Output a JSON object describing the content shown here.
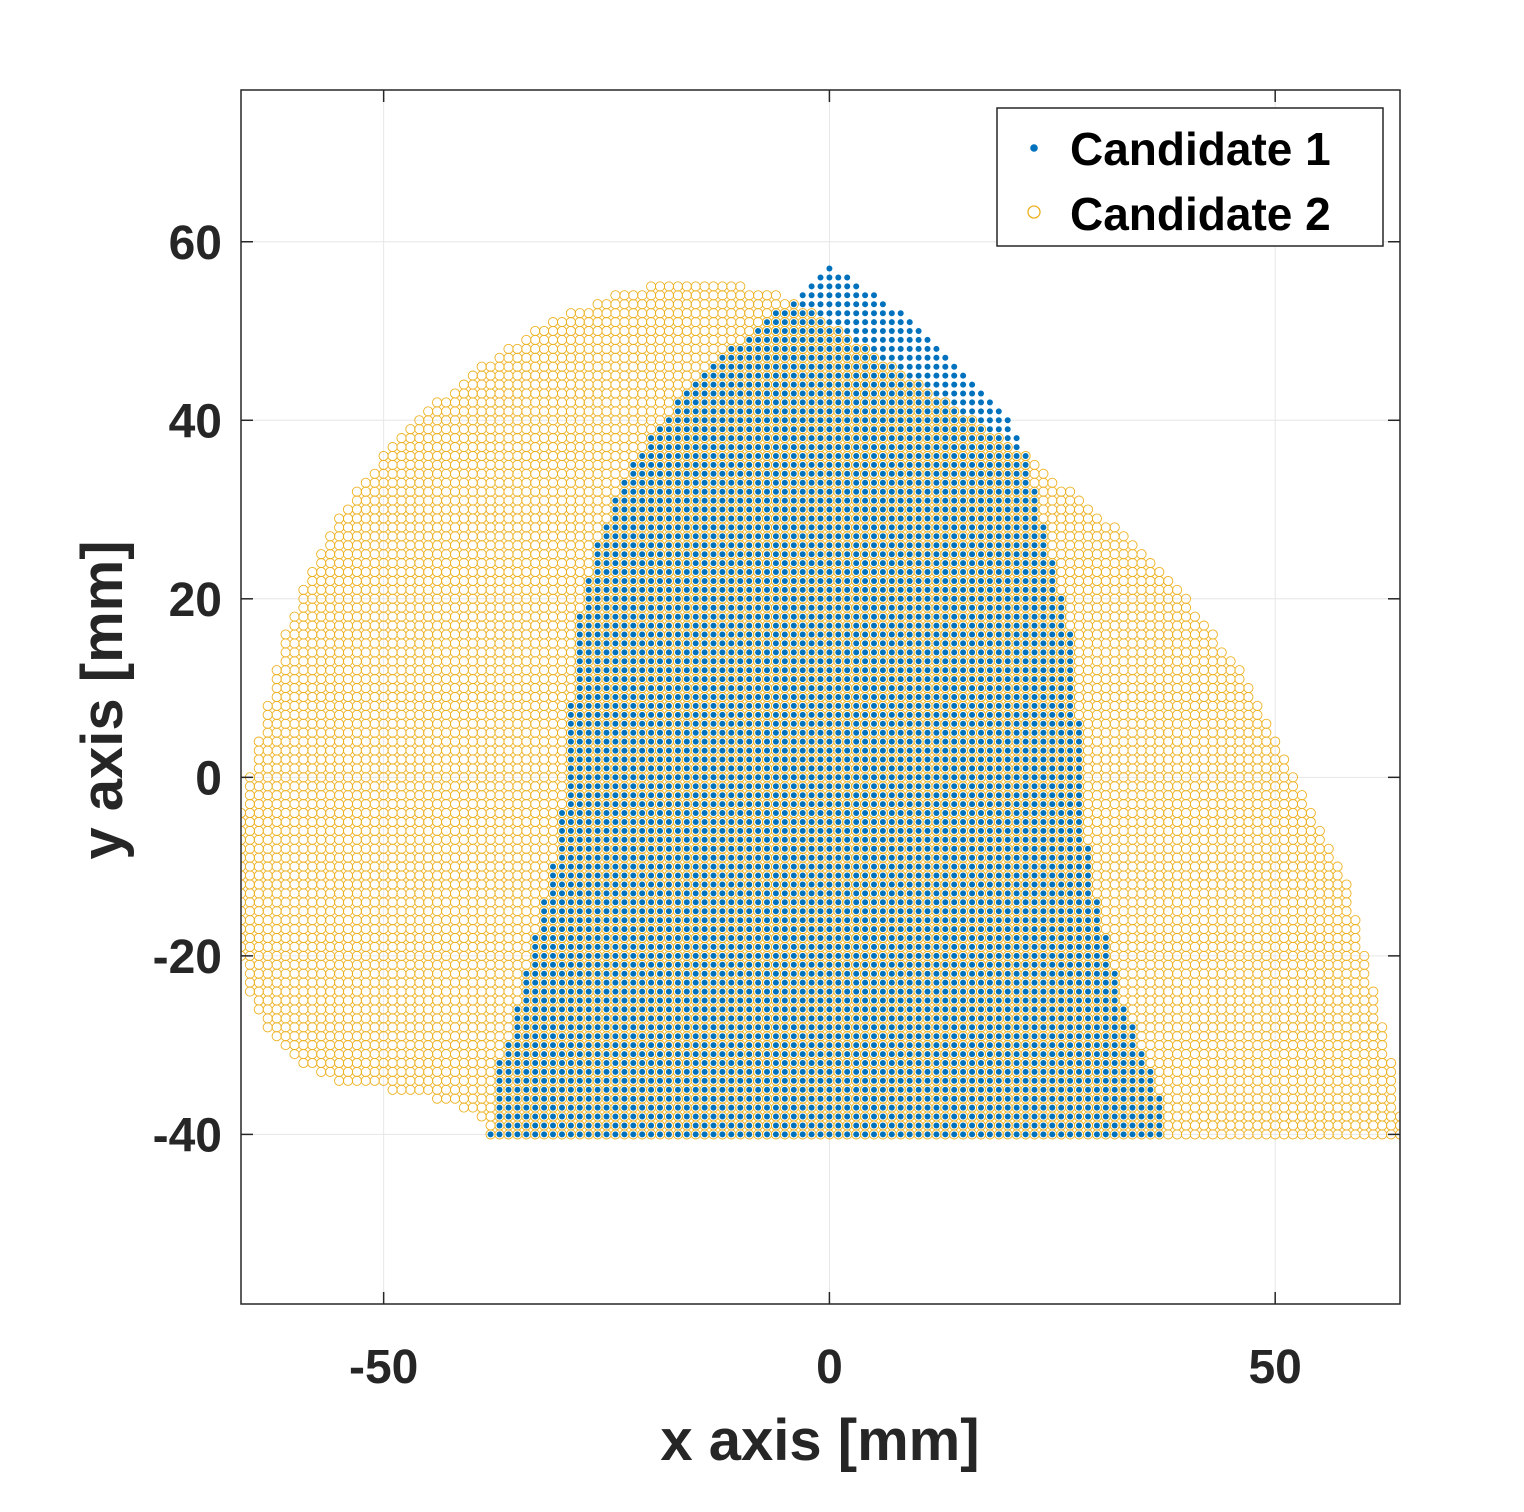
{
  "chart_data": {
    "type": "scatter",
    "xlabel": "x axis [mm]",
    "ylabel": "y axis [mm]",
    "xlim": [
      -66,
      64
    ],
    "ylim": [
      -59,
      77
    ],
    "xticks": [
      -50,
      0,
      50
    ],
    "xtick_labels": [
      "-50",
      "0",
      "50"
    ],
    "yticks": [
      -40,
      -20,
      0,
      20,
      40,
      60
    ],
    "ytick_labels": [
      "-40",
      "-20",
      "0",
      "20",
      "40",
      "60"
    ],
    "grid": true,
    "legend_position": "top-right",
    "grid_spacing": 1,
    "series": [
      {
        "name": "Candidate 1",
        "marker": "filled-dot",
        "color": "#0072BD",
        "region_rows": [
          [
            -40,
            -38,
            37.5
          ],
          [
            -36,
            -37.5,
            37
          ],
          [
            -34,
            -37,
            36.5
          ],
          [
            -32,
            -37,
            35.5
          ],
          [
            -30,
            -36,
            34.5
          ],
          [
            -28,
            -35.5,
            34
          ],
          [
            -26,
            -35,
            33
          ],
          [
            -24,
            -34.5,
            32.5
          ],
          [
            -22,
            -34,
            32
          ],
          [
            -20,
            -33.5,
            31.5
          ],
          [
            -18,
            -33,
            31
          ],
          [
            -16,
            -32.5,
            30.5
          ],
          [
            -14,
            -32,
            30
          ],
          [
            -12,
            -31.5,
            29.5
          ],
          [
            -10,
            -31,
            29
          ],
          [
            -8,
            -30.5,
            29
          ],
          [
            -6,
            -30,
            28.5
          ],
          [
            -4,
            -30,
            28.5
          ],
          [
            -2,
            -29.5,
            28.5
          ],
          [
            0,
            -29.5,
            28.5
          ],
          [
            2,
            -29.5,
            28.5
          ],
          [
            4,
            -29,
            28
          ],
          [
            6,
            -29,
            28
          ],
          [
            8,
            -29,
            27.5
          ],
          [
            10,
            -28.5,
            27.5
          ],
          [
            12,
            -28.5,
            27
          ],
          [
            14,
            -28.5,
            27
          ],
          [
            16,
            -28,
            27
          ],
          [
            18,
            -28,
            26.5
          ],
          [
            20,
            -27.5,
            26
          ],
          [
            22,
            -27,
            25.5
          ],
          [
            24,
            -26.5,
            25
          ],
          [
            26,
            -26,
            24.5
          ],
          [
            28,
            -25,
            24
          ],
          [
            30,
            -24.5,
            23.5
          ],
          [
            32,
            -23.5,
            23
          ],
          [
            34,
            -22.5,
            22.5
          ],
          [
            36,
            -21.5,
            22
          ],
          [
            38,
            -20,
            21
          ],
          [
            40,
            -18.5,
            20
          ],
          [
            42,
            -17,
            18
          ],
          [
            44,
            -15,
            16
          ],
          [
            46,
            -13,
            14
          ],
          [
            48,
            -11,
            12
          ],
          [
            50,
            -8.5,
            10
          ],
          [
            52,
            -6,
            8
          ],
          [
            54,
            -3.5,
            5
          ],
          [
            56,
            -1.5,
            2.5
          ],
          [
            57.5,
            0,
            0
          ]
        ]
      },
      {
        "name": "Candidate 2",
        "marker": "open-circle",
        "color": "#EDB120",
        "region_rows": [
          [
            -40,
            -38.5,
            64
          ],
          [
            -38,
            -39,
            64
          ],
          [
            -36,
            -44,
            63.5
          ],
          [
            -34,
            -55,
            63
          ],
          [
            -32,
            -59,
            63
          ],
          [
            -30,
            -61.5,
            62.5
          ],
          [
            -28,
            -63,
            62
          ],
          [
            -26,
            -64,
            61.5
          ],
          [
            -24,
            -65,
            61
          ],
          [
            -22,
            -65.5,
            60.5
          ],
          [
            -20,
            -66,
            60
          ],
          [
            -18,
            -66,
            59.5
          ],
          [
            -16,
            -66,
            59
          ],
          [
            -14,
            -66,
            58.5
          ],
          [
            -12,
            -66,
            58
          ],
          [
            -10,
            -66,
            57
          ],
          [
            -8,
            -66,
            56
          ],
          [
            -6,
            -66,
            55
          ],
          [
            -4,
            -66,
            54
          ],
          [
            -2,
            -65.5,
            53
          ],
          [
            0,
            -65,
            52
          ],
          [
            2,
            -64.5,
            51
          ],
          [
            4,
            -64,
            50
          ],
          [
            6,
            -63.5,
            49
          ],
          [
            8,
            -63,
            48
          ],
          [
            10,
            -62.5,
            47
          ],
          [
            12,
            -62,
            46
          ],
          [
            14,
            -61.5,
            44.5
          ],
          [
            16,
            -61,
            43
          ],
          [
            18,
            -60,
            41.5
          ],
          [
            20,
            -59.5,
            40
          ],
          [
            22,
            -58.5,
            38
          ],
          [
            24,
            -57.5,
            36
          ],
          [
            26,
            -56.5,
            34
          ],
          [
            28,
            -55.5,
            32
          ],
          [
            30,
            -54.5,
            29.5
          ],
          [
            32,
            -53,
            27
          ],
          [
            34,
            -51.5,
            24.5
          ],
          [
            36,
            -50,
            22
          ],
          [
            38,
            -48,
            19
          ],
          [
            40,
            -46,
            16
          ],
          [
            42,
            -44,
            13
          ],
          [
            44,
            -41.5,
            10
          ],
          [
            46,
            -39,
            7
          ],
          [
            48,
            -36,
            4
          ],
          [
            50,
            -33,
            1
          ],
          [
            52,
            -29,
            -2
          ],
          [
            54,
            -24,
            -6
          ],
          [
            55.5,
            -18,
            -11
          ]
        ]
      }
    ]
  }
}
